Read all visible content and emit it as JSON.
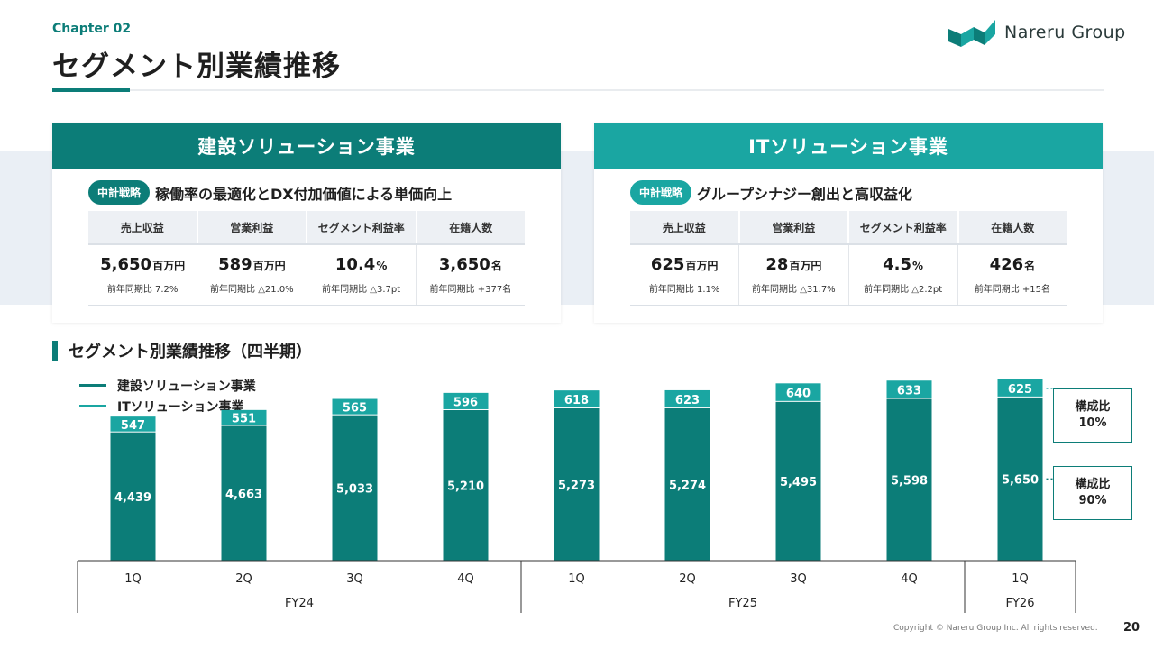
{
  "header": {
    "chapter": "Chapter 02",
    "title": "セグメント別業績推移",
    "logo_text": "Nareru Group"
  },
  "colors": {
    "teal_dark": "#0c7d78",
    "teal_light": "#1aa6a2",
    "band": "#eaeff5"
  },
  "cards": [
    {
      "title": "建設ソリューション事業",
      "header_color": "#0c7d78",
      "strategy_badge": "中計戦略",
      "strategy_text": "稼働率の最適化とDX付加価値による単価向上",
      "kpis": [
        {
          "label": "売上収益",
          "value": "5,650",
          "unit": "百万円",
          "compare": "前年同期比 7.2%"
        },
        {
          "label": "営業利益",
          "value": "589",
          "unit": "百万円",
          "compare": "前年同期比 △21.0%"
        },
        {
          "label": "セグメント利益率",
          "value": "10.4",
          "unit": "%",
          "compare": "前年同期比 △3.7pt"
        },
        {
          "label": "在籍人数",
          "value": "3,650",
          "unit": "名",
          "compare": "前年同期比 +377名"
        }
      ]
    },
    {
      "title": "ITソリューション事業",
      "header_color": "#1aa6a2",
      "strategy_badge": "中計戦略",
      "strategy_text": "グループシナジー創出と高収益化",
      "kpis": [
        {
          "label": "売上収益",
          "value": "625",
          "unit": "百万円",
          "compare": "前年同期比 1.1%"
        },
        {
          "label": "営業利益",
          "value": "28",
          "unit": "百万円",
          "compare": "前年同期比 △31.7%"
        },
        {
          "label": "セグメント利益率",
          "value": "4.5",
          "unit": "%",
          "compare": "前年同期比 △2.2pt"
        },
        {
          "label": "在籍人数",
          "value": "426",
          "unit": "名",
          "compare": "前年同期比 +15名"
        }
      ]
    }
  ],
  "section_title": "セグメント別業績推移（四半期）",
  "ratio_boxes": {
    "it": {
      "label": "構成比",
      "value": "10%"
    },
    "construction": {
      "label": "構成比",
      "value": "90%"
    }
  },
  "chart_data": {
    "type": "bar",
    "stacked": true,
    "title": "セグメント別業績推移（四半期）",
    "categories": [
      "1Q",
      "2Q",
      "3Q",
      "4Q",
      "1Q",
      "2Q",
      "3Q",
      "4Q",
      "1Q"
    ],
    "year_groups": [
      {
        "label": "FY24",
        "count": 4
      },
      {
        "label": "FY25",
        "count": 4
      },
      {
        "label": "FY26",
        "count": 1
      }
    ],
    "series": [
      {
        "name": "建設ソリューション事業",
        "color": "#0c7d78",
        "values": [
          4439,
          4663,
          5033,
          5210,
          5273,
          5274,
          5495,
          5598,
          5650
        ]
      },
      {
        "name": "ITソリューション事業",
        "color": "#1aa6a2",
        "values": [
          547,
          551,
          565,
          596,
          618,
          623,
          640,
          633,
          625
        ]
      }
    ],
    "legend_position": "top-left",
    "ylim": [
      0,
      6800
    ]
  },
  "footer": {
    "copyright": "Copyright © Nareru Group Inc. All rights reserved.",
    "page": "20"
  }
}
